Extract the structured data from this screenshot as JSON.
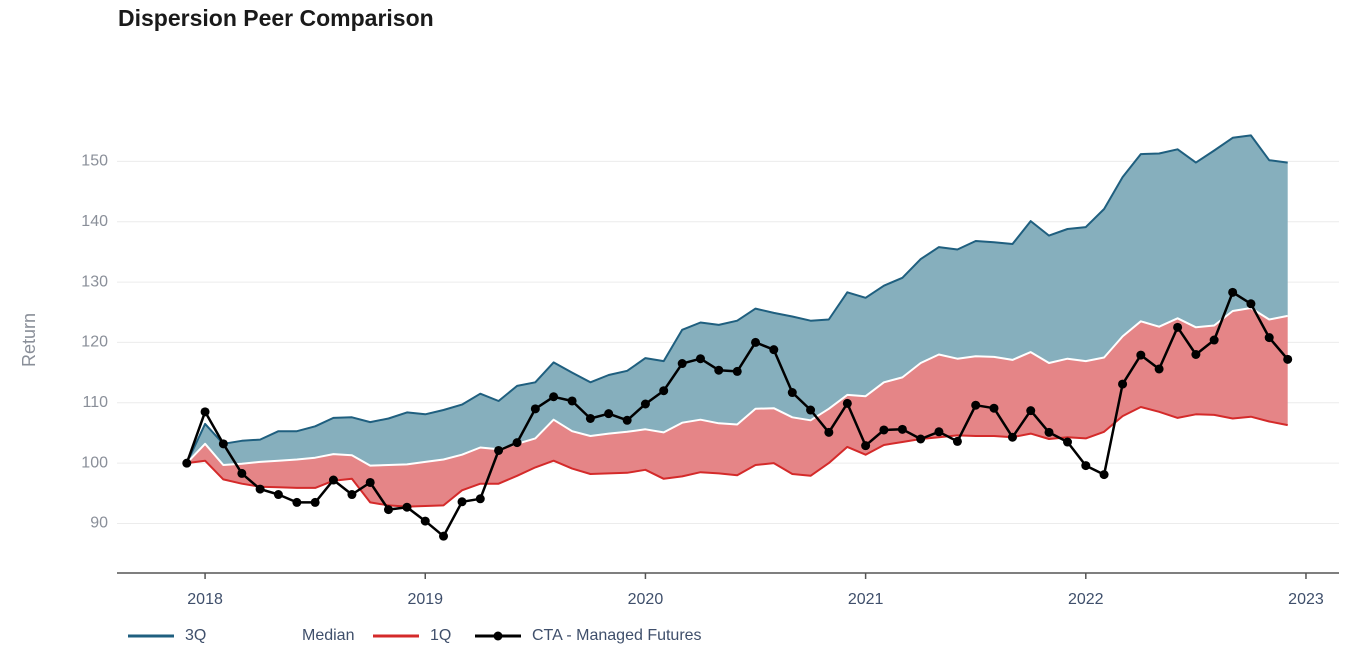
{
  "chart_data": {
    "type": "area",
    "title": "Dispersion Peer Comparison",
    "y_label": "Return",
    "x": [
      2017.917,
      2018,
      2018.083,
      2018.167,
      2018.25,
      2018.333,
      2018.417,
      2018.5,
      2018.583,
      2018.667,
      2018.75,
      2018.833,
      2018.917,
      2019,
      2019.083,
      2019.167,
      2019.25,
      2019.333,
      2019.417,
      2019.5,
      2019.583,
      2019.667,
      2019.75,
      2019.833,
      2019.917,
      2020,
      2020.083,
      2020.167,
      2020.25,
      2020.333,
      2020.417,
      2020.5,
      2020.583,
      2020.667,
      2020.75,
      2020.833,
      2020.917,
      2021,
      2021.083,
      2021.167,
      2021.25,
      2021.333,
      2021.417,
      2021.5,
      2021.583,
      2021.667,
      2021.75,
      2021.833,
      2021.917,
      2022,
      2022.083,
      2022.167,
      2022.25,
      2022.333,
      2022.417,
      2022.5,
      2022.583,
      2022.667,
      2022.75,
      2022.833,
      2022.917
    ],
    "series": [
      {
        "name": "3Q",
        "color": "#1f5f7f",
        "fill": "#86afbd",
        "fill_to": 1,
        "values": [
          100,
          106.5,
          103.2,
          103.7,
          103.9,
          105.3,
          105.3,
          106.1,
          107.5,
          107.6,
          106.8,
          107.4,
          108.4,
          108.1,
          108.8,
          109.7,
          111.5,
          110.3,
          112.8,
          113.4,
          116.7,
          115.0,
          113.4,
          114.6,
          115.3,
          117.4,
          116.9,
          122.1,
          123.3,
          122.9,
          123.6,
          125.6,
          124.9,
          124.3,
          123.6,
          123.8,
          128.3,
          127.4,
          129.4,
          130.7,
          133.8,
          135.8,
          135.4,
          136.8,
          136.6,
          136.3,
          140.1,
          137.7,
          138.8,
          139.1,
          142.1,
          147.4,
          151.2,
          151.3,
          152.0,
          149.8,
          151.8,
          153.9,
          154.3,
          150.2,
          149.8
        ]
      },
      {
        "name": "Median",
        "color": "#ffffff",
        "values": [
          100,
          103.2,
          99.7,
          99.9,
          100.2,
          100.4,
          100.6,
          100.9,
          101.5,
          101.3,
          99.6,
          99.7,
          99.8,
          100.2,
          100.6,
          101.4,
          102.6,
          102.3,
          103.2,
          104.1,
          107.2,
          105.3,
          104.5,
          104.9,
          105.2,
          105.6,
          105.1,
          106.7,
          107.2,
          106.6,
          106.4,
          109.0,
          109.1,
          107.6,
          107.1,
          109.0,
          111.3,
          111.1,
          113.4,
          114.2,
          116.6,
          118.0,
          117.3,
          117.7,
          117.6,
          117.1,
          118.4,
          116.6,
          117.3,
          116.9,
          117.5,
          121.0,
          123.5,
          122.6,
          124.0,
          122.5,
          122.8,
          125.2,
          125.7,
          123.8,
          124.4
        ]
      },
      {
        "name": "1Q",
        "color": "#d42a2a",
        "fill": "#e58587",
        "fill_to": 1,
        "values": [
          100,
          100.4,
          97.3,
          96.6,
          96.1,
          96.0,
          95.9,
          95.9,
          97.1,
          97.4,
          93.5,
          93.0,
          92.8,
          92.9,
          93.0,
          95.5,
          96.6,
          96.6,
          97.9,
          99.3,
          100.4,
          99.1,
          98.2,
          98.3,
          98.4,
          98.9,
          97.4,
          97.8,
          98.5,
          98.3,
          98.0,
          99.7,
          100.0,
          98.2,
          97.9,
          100.0,
          102.7,
          101.4,
          103.0,
          103.5,
          104.0,
          104.3,
          104.6,
          104.5,
          104.5,
          104.3,
          104.9,
          104.0,
          104.3,
          104.1,
          105.2,
          107.8,
          109.3,
          108.5,
          107.5,
          108.1,
          108.0,
          107.4,
          107.7,
          106.9,
          106.3
        ]
      },
      {
        "name": "CTA - Managed Futures",
        "color": "#000000",
        "markers": true,
        "values": [
          100,
          108.5,
          103.2,
          98.3,
          95.7,
          94.8,
          93.5,
          93.5,
          97.2,
          94.8,
          96.8,
          92.3,
          92.7,
          90.4,
          87.9,
          93.6,
          94.1,
          102.1,
          103.4,
          109.0,
          111.0,
          110.3,
          107.4,
          108.2,
          107.1,
          109.8,
          112.0,
          116.5,
          117.3,
          115.4,
          115.2,
          120.0,
          118.8,
          111.7,
          108.8,
          105.1,
          109.9,
          102.9,
          105.5,
          105.6,
          104.0,
          105.2,
          103.6,
          109.6,
          109.1,
          104.3,
          108.7,
          105.1,
          103.5,
          99.6,
          98.1,
          113.1,
          117.9,
          115.6,
          122.5,
          118.0,
          120.4,
          128.3,
          126.4,
          120.8,
          117.2
        ]
      }
    ],
    "xlim": [
      2017.6,
      2023.15
    ],
    "xticks": [
      2018,
      2019,
      2020,
      2021,
      2022,
      2023
    ],
    "ylim": [
      81.8,
      160
    ],
    "yticks": [
      90,
      100,
      110,
      120,
      130,
      140,
      150
    ],
    "grid": true,
    "legend": "bottom"
  }
}
